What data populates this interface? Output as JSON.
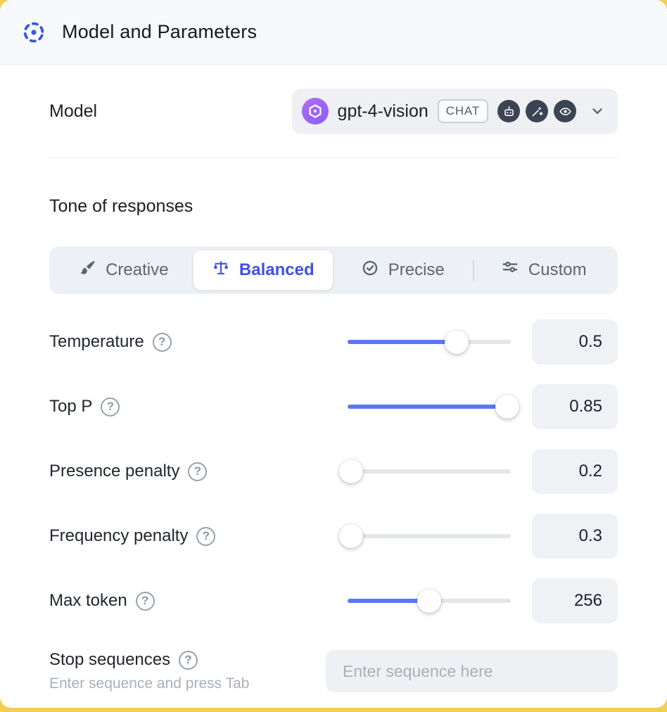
{
  "colors": {
    "accent_blue": "#4051e8",
    "slider_fill": "#5b78f6",
    "header_bg": "#f8f9fb",
    "control_bg": "#eef0f4",
    "page_bg": "#f2cf55"
  },
  "glyphs": {
    "question": "?"
  },
  "header": {
    "title": "Model and Parameters",
    "icon": "model-params-icon"
  },
  "model_row": {
    "label": "Model",
    "selector": {
      "model_name": "gpt-4-vision",
      "type_badge": "CHAT",
      "provider_icon": "openai-logo",
      "capability_icons": [
        "robot-icon",
        "magic-wand-icon",
        "eye-icon"
      ],
      "chevron_icon": "chevron-down-icon"
    }
  },
  "tone": {
    "title": "Tone of responses",
    "options": [
      {
        "label": "Creative",
        "icon": "paintbrush-icon",
        "selected": false
      },
      {
        "label": "Balanced",
        "icon": "balance-scale-icon",
        "selected": true
      },
      {
        "label": "Precise",
        "icon": "precise-icon",
        "selected": false
      },
      {
        "label": "Custom",
        "icon": "sliders-icon",
        "selected": false
      }
    ]
  },
  "parameters": [
    {
      "label": "Temperature",
      "value": "0.5",
      "fill_pct": 67
    },
    {
      "label": "Top P",
      "value": "0.85",
      "fill_pct": 98
    },
    {
      "label": "Presence penalty",
      "value": "0.2",
      "fill_pct": 2
    },
    {
      "label": "Frequency penalty",
      "value": "0.3",
      "fill_pct": 2
    },
    {
      "label": "Max token",
      "value": "256",
      "fill_pct": 50
    }
  ],
  "stop_sequences": {
    "label": "Stop sequences",
    "hint": "Enter sequence and press Tab",
    "input_placeholder": "Enter sequence here"
  }
}
